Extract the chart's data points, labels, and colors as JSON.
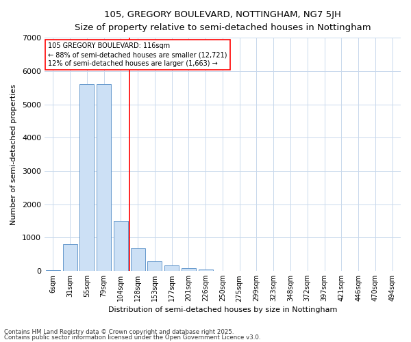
{
  "title": "105, GREGORY BOULEVARD, NOTTINGHAM, NG7 5JH",
  "subtitle": "Size of property relative to semi-detached houses in Nottingham",
  "xlabel": "Distribution of semi-detached houses by size in Nottingham",
  "ylabel": "Number of semi-detached properties",
  "categories": [
    "6sqm",
    "31sqm",
    "55sqm",
    "79sqm",
    "104sqm",
    "128sqm",
    "153sqm",
    "177sqm",
    "201sqm",
    "226sqm",
    "250sqm",
    "275sqm",
    "299sqm",
    "323sqm",
    "348sqm",
    "372sqm",
    "397sqm",
    "421sqm",
    "446sqm",
    "470sqm",
    "494sqm"
  ],
  "values": [
    20,
    800,
    5600,
    5600,
    1500,
    680,
    290,
    160,
    80,
    40,
    10,
    0,
    0,
    0,
    0,
    0,
    0,
    0,
    0,
    0,
    0
  ],
  "bar_color": "#cce0f5",
  "bar_edge_color": "#6699cc",
  "grid_color": "#c8d8ec",
  "background_color": "#ffffff",
  "annotation_text": "105 GREGORY BOULEVARD: 116sqm\n← 88% of semi-detached houses are smaller (12,721)\n12% of semi-detached houses are larger (1,663) →",
  "vline_x_index": 4.5,
  "footer_line1": "Contains HM Land Registry data © Crown copyright and database right 2025.",
  "footer_line2": "Contains public sector information licensed under the Open Government Licence v3.0.",
  "ylim": [
    0,
    7000
  ],
  "yticks": [
    0,
    1000,
    2000,
    3000,
    4000,
    5000,
    6000,
    7000
  ]
}
